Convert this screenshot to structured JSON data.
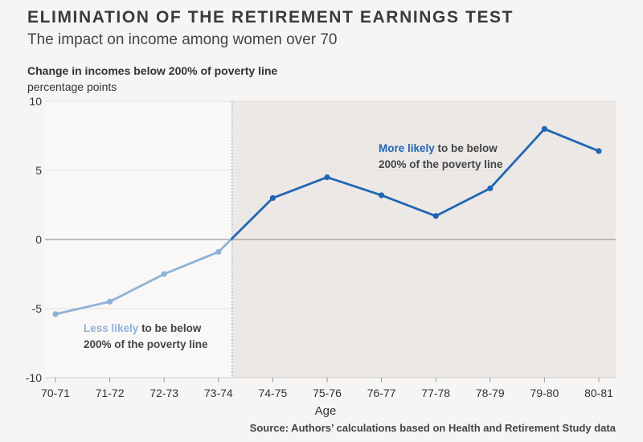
{
  "header": {
    "title": "ELIMINATION OF THE RETIREMENT EARNINGS TEST",
    "subtitle": "The impact on income among women over 70",
    "y_label": "Change in incomes below 200% of poverty line",
    "y_unit": "percentage points"
  },
  "footer": {
    "source": "Source: Authors’ calculations based on Health and Retirement Study data"
  },
  "colors": {
    "light_series": "#8fb2d8",
    "dark_series": "#2166b3",
    "shaded_region": "#ebe8e6",
    "background": "#f6f5f3"
  },
  "chart_data": {
    "type": "line",
    "xlabel": "Age",
    "ylabel": "Change in incomes below 200% of poverty line",
    "ylim": [
      -10,
      10
    ],
    "yticks": [
      10,
      5,
      0,
      -5,
      -10
    ],
    "ytick_labels": [
      "10",
      "5",
      "0",
      "-5",
      "-10"
    ],
    "categories": [
      "70-71",
      "71-72",
      "72-73",
      "73-74",
      "74-75",
      "75-76",
      "76-77",
      "77-78",
      "78-79",
      "79-80",
      "80-81"
    ],
    "values": [
      -5.4,
      -4.5,
      -2.5,
      -0.9,
      3.0,
      4.5,
      3.2,
      1.7,
      3.7,
      8.0,
      6.4
    ],
    "shaded_from": "73-74",
    "annotations": [
      {
        "highlight": "Less likely",
        "rest": " to be below",
        "line2": "200% of the poverty line"
      },
      {
        "highlight": "More likely",
        "rest": " to be below",
        "line2": "200% of the poverty line"
      }
    ],
    "grid": true
  }
}
